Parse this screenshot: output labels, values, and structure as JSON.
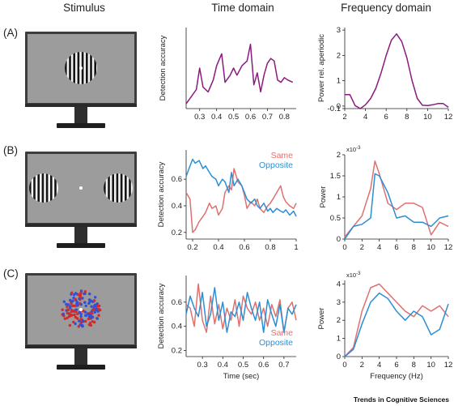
{
  "columns": {
    "stimulus": "Stimulus",
    "time": "Time domain",
    "frequency": "Frequency domain"
  },
  "rows": [
    {
      "label": "(A)",
      "stimulus": "single-grating",
      "time": {
        "ylabel": "Detection accuracy",
        "xlabel": "",
        "xlim": [
          0.22,
          0.87
        ],
        "ylim": [
          0.38,
          0.72
        ],
        "xticks": [
          "0.3",
          "0.4",
          "0.5",
          "0.6",
          "0.7",
          "0.8"
        ],
        "xtick_values": [
          0.3,
          0.4,
          0.5,
          0.6,
          0.7,
          0.8
        ],
        "legend": [],
        "series": [
          {
            "color": "#8b1a7e",
            "x": [
              0.22,
              0.25,
              0.28,
              0.3,
              0.32,
              0.35,
              0.38,
              0.4,
              0.43,
              0.45,
              0.48,
              0.5,
              0.52,
              0.55,
              0.58,
              0.6,
              0.62,
              0.64,
              0.66,
              0.68,
              0.7,
              0.72,
              0.74,
              0.76,
              0.78,
              0.8,
              0.82,
              0.85
            ],
            "y": [
              0.4,
              0.43,
              0.46,
              0.55,
              0.47,
              0.45,
              0.5,
              0.56,
              0.61,
              0.49,
              0.52,
              0.55,
              0.52,
              0.56,
              0.58,
              0.65,
              0.48,
              0.53,
              0.45,
              0.52,
              0.57,
              0.59,
              0.58,
              0.5,
              0.49,
              0.51,
              0.5,
              0.49
            ]
          }
        ]
      },
      "freq": {
        "ylabel": "Power rel. aperiodic",
        "xlabel": "",
        "exponent": "",
        "xlim": [
          2,
          12
        ],
        "ylim": [
          -0.1,
          3.1
        ],
        "xticks": [
          "2",
          "4",
          "6",
          "8",
          "10",
          "12"
        ],
        "xtick_values": [
          2,
          4,
          6,
          8,
          10,
          12
        ],
        "yticks": [
          "-0.1",
          "0",
          "1",
          "2",
          "3"
        ],
        "ytick_values": [
          -0.1,
          0,
          1,
          2,
          3
        ],
        "series": [
          {
            "color": "#8b1a7e",
            "x": [
              2,
              2.5,
              3,
              3.5,
              4,
              4.5,
              5,
              5.5,
              6,
              6.5,
              7,
              7.5,
              8,
              8.5,
              9,
              9.5,
              10,
              10.5,
              11,
              11.5,
              12
            ],
            "y": [
              0.45,
              0.45,
              0.02,
              -0.1,
              0.05,
              0.3,
              0.7,
              1.3,
              2.0,
              2.6,
              2.85,
              2.55,
              1.9,
              1.0,
              0.3,
              0.03,
              0.02,
              0.05,
              0.1,
              0.1,
              -0.05
            ]
          }
        ]
      }
    },
    {
      "label": "(B)",
      "stimulus": "two-gratings",
      "time": {
        "ylabel": "Detection accuracy",
        "xlabel": "",
        "xlim": [
          0.15,
          1.0
        ],
        "ylim": [
          0.15,
          0.82
        ],
        "xticks": [
          "0.2",
          "0.4",
          "0.6",
          "0.8",
          "1"
        ],
        "xtick_values": [
          0.2,
          0.4,
          0.6,
          0.8,
          1.0
        ],
        "yticks": [
          "0.2",
          "0.4",
          "0.6"
        ],
        "ytick_values": [
          0.2,
          0.4,
          0.6
        ],
        "legend": [
          {
            "label": "Same",
            "color": "#e07070"
          },
          {
            "label": "Opposite",
            "color": "#2a8fd4"
          }
        ],
        "series": [
          {
            "name": "Same",
            "color": "#e07070",
            "x": [
              0.15,
              0.18,
              0.2,
              0.22,
              0.25,
              0.28,
              0.3,
              0.33,
              0.35,
              0.38,
              0.4,
              0.43,
              0.45,
              0.48,
              0.5,
              0.52,
              0.55,
              0.58,
              0.6,
              0.62,
              0.65,
              0.68,
              0.7,
              0.72,
              0.75,
              0.78,
              0.8,
              0.82,
              0.85,
              0.88,
              0.9,
              0.92,
              0.95,
              0.98,
              1.0
            ],
            "y": [
              0.5,
              0.45,
              0.2,
              0.22,
              0.28,
              0.32,
              0.35,
              0.42,
              0.38,
              0.4,
              0.33,
              0.38,
              0.5,
              0.55,
              0.52,
              0.68,
              0.58,
              0.55,
              0.48,
              0.38,
              0.43,
              0.4,
              0.45,
              0.38,
              0.35,
              0.4,
              0.42,
              0.45,
              0.5,
              0.55,
              0.47,
              0.43,
              0.4,
              0.38,
              0.42
            ]
          },
          {
            "name": "Opposite",
            "color": "#2a8fd4",
            "x": [
              0.15,
              0.18,
              0.2,
              0.22,
              0.25,
              0.28,
              0.3,
              0.33,
              0.35,
              0.38,
              0.4,
              0.43,
              0.45,
              0.48,
              0.5,
              0.52,
              0.55,
              0.58,
              0.6,
              0.62,
              0.65,
              0.68,
              0.7,
              0.72,
              0.75,
              0.78,
              0.8,
              0.82,
              0.85,
              0.88,
              0.9,
              0.92,
              0.95,
              0.98,
              1.0
            ],
            "y": [
              0.62,
              0.7,
              0.75,
              0.72,
              0.74,
              0.68,
              0.7,
              0.65,
              0.62,
              0.6,
              0.55,
              0.6,
              0.58,
              0.5,
              0.65,
              0.55,
              0.6,
              0.55,
              0.5,
              0.45,
              0.42,
              0.45,
              0.4,
              0.38,
              0.42,
              0.36,
              0.38,
              0.35,
              0.38,
              0.36,
              0.35,
              0.37,
              0.33,
              0.36,
              0.32
            ]
          }
        ]
      },
      "freq": {
        "ylabel": "Power",
        "xlabel": "",
        "exponent": "x10",
        "exponent_power": "-3",
        "xlim": [
          0,
          12
        ],
        "ylim": [
          0,
          2.0
        ],
        "xticks": [
          "0",
          "2",
          "4",
          "6",
          "8",
          "10",
          "12"
        ],
        "xtick_values": [
          0,
          2,
          4,
          6,
          8,
          10,
          12
        ],
        "yticks": [
          "0",
          "0.5",
          "1",
          "1.5",
          "2"
        ],
        "ytick_values": [
          0,
          0.5,
          1,
          1.5,
          2
        ],
        "series": [
          {
            "name": "Same",
            "color": "#e07070",
            "x": [
              0,
              1,
              2,
              3,
              3.5,
              4,
              5,
              6,
              7,
              8,
              9,
              10,
              11,
              12
            ],
            "y": [
              0.05,
              0.3,
              0.55,
              1.2,
              1.85,
              1.55,
              0.85,
              0.7,
              0.85,
              0.85,
              0.75,
              0.1,
              0.4,
              0.3
            ]
          },
          {
            "name": "Opposite",
            "color": "#2a8fd4",
            "x": [
              0,
              1,
              2,
              3,
              3.5,
              4,
              5,
              6,
              7,
              8,
              9,
              10,
              11,
              12
            ],
            "y": [
              0.0,
              0.3,
              0.35,
              0.5,
              1.55,
              1.5,
              1.1,
              0.5,
              0.55,
              0.4,
              0.4,
              0.3,
              0.5,
              0.55
            ]
          }
        ]
      }
    },
    {
      "label": "(C)",
      "stimulus": "dots",
      "time": {
        "ylabel": "Detection accuracy",
        "xlabel": "Time (sec)",
        "xlim": [
          0.22,
          0.76
        ],
        "ylim": [
          0.15,
          0.82
        ],
        "xticks": [
          "0.3",
          "0.4",
          "0.5",
          "0.6",
          "0.7"
        ],
        "xtick_values": [
          0.3,
          0.4,
          0.5,
          0.6,
          0.7
        ],
        "yticks": [
          "0.2",
          "0.4",
          "0.6"
        ],
        "ytick_values": [
          0.2,
          0.4,
          0.6
        ],
        "legend": [
          {
            "label": "Same",
            "color": "#e07070"
          },
          {
            "label": "Opposite",
            "color": "#2a8fd4"
          }
        ],
        "series": [
          {
            "name": "Same",
            "color": "#e07070",
            "x": [
              0.22,
              0.24,
              0.26,
              0.28,
              0.3,
              0.32,
              0.34,
              0.36,
              0.38,
              0.4,
              0.42,
              0.44,
              0.46,
              0.48,
              0.5,
              0.52,
              0.54,
              0.56,
              0.58,
              0.6,
              0.62,
              0.64,
              0.66,
              0.68,
              0.7,
              0.72,
              0.74,
              0.76
            ],
            "y": [
              0.58,
              0.55,
              0.4,
              0.75,
              0.45,
              0.35,
              0.65,
              0.42,
              0.58,
              0.38,
              0.55,
              0.45,
              0.62,
              0.4,
              0.65,
              0.55,
              0.5,
              0.6,
              0.45,
              0.55,
              0.4,
              0.58,
              0.48,
              0.62,
              0.35,
              0.55,
              0.6,
              0.45
            ]
          },
          {
            "name": "Opposite",
            "color": "#2a8fd4",
            "x": [
              0.22,
              0.24,
              0.26,
              0.28,
              0.3,
              0.32,
              0.34,
              0.36,
              0.38,
              0.4,
              0.42,
              0.44,
              0.46,
              0.48,
              0.5,
              0.52,
              0.54,
              0.56,
              0.58,
              0.6,
              0.62,
              0.64,
              0.66,
              0.68,
              0.7,
              0.72,
              0.74,
              0.76
            ],
            "y": [
              0.5,
              0.65,
              0.55,
              0.48,
              0.68,
              0.4,
              0.5,
              0.72,
              0.45,
              0.6,
              0.35,
              0.52,
              0.48,
              0.6,
              0.45,
              0.68,
              0.55,
              0.45,
              0.6,
              0.35,
              0.62,
              0.5,
              0.4,
              0.58,
              0.35,
              0.55,
              0.5,
              0.58
            ]
          }
        ]
      },
      "freq": {
        "ylabel": "Power",
        "xlabel": "Frequency (Hz)",
        "exponent": "x10",
        "exponent_power": "-3",
        "xlim": [
          0,
          12
        ],
        "ylim": [
          0,
          4.2
        ],
        "xticks": [
          "0",
          "2",
          "4",
          "6",
          "8",
          "10",
          "12"
        ],
        "xtick_values": [
          0,
          2,
          4,
          6,
          8,
          10,
          12
        ],
        "yticks": [
          "0",
          "1",
          "2",
          "3",
          "4"
        ],
        "ytick_values": [
          0,
          1,
          2,
          3,
          4
        ],
        "series": [
          {
            "name": "Same",
            "color": "#e07070",
            "x": [
              0,
              1,
              2,
              3,
              4,
              5,
              6,
              7,
              8,
              9,
              10,
              11,
              12
            ],
            "y": [
              0.0,
              0.5,
              2.5,
              3.8,
              4.0,
              3.5,
              3.0,
              2.5,
              2.2,
              2.8,
              2.5,
              2.8,
              2.2
            ]
          },
          {
            "name": "Opposite",
            "color": "#2a8fd4",
            "x": [
              0,
              1,
              2,
              3,
              4,
              5,
              6,
              7,
              8,
              9,
              10,
              11,
              12
            ],
            "y": [
              0.0,
              0.4,
              1.8,
              3.0,
              3.5,
              3.2,
              2.5,
              2.0,
              2.5,
              2.2,
              1.2,
              1.5,
              2.9
            ]
          }
        ]
      }
    }
  ],
  "credit": "Trends in Cognitive Sciences"
}
